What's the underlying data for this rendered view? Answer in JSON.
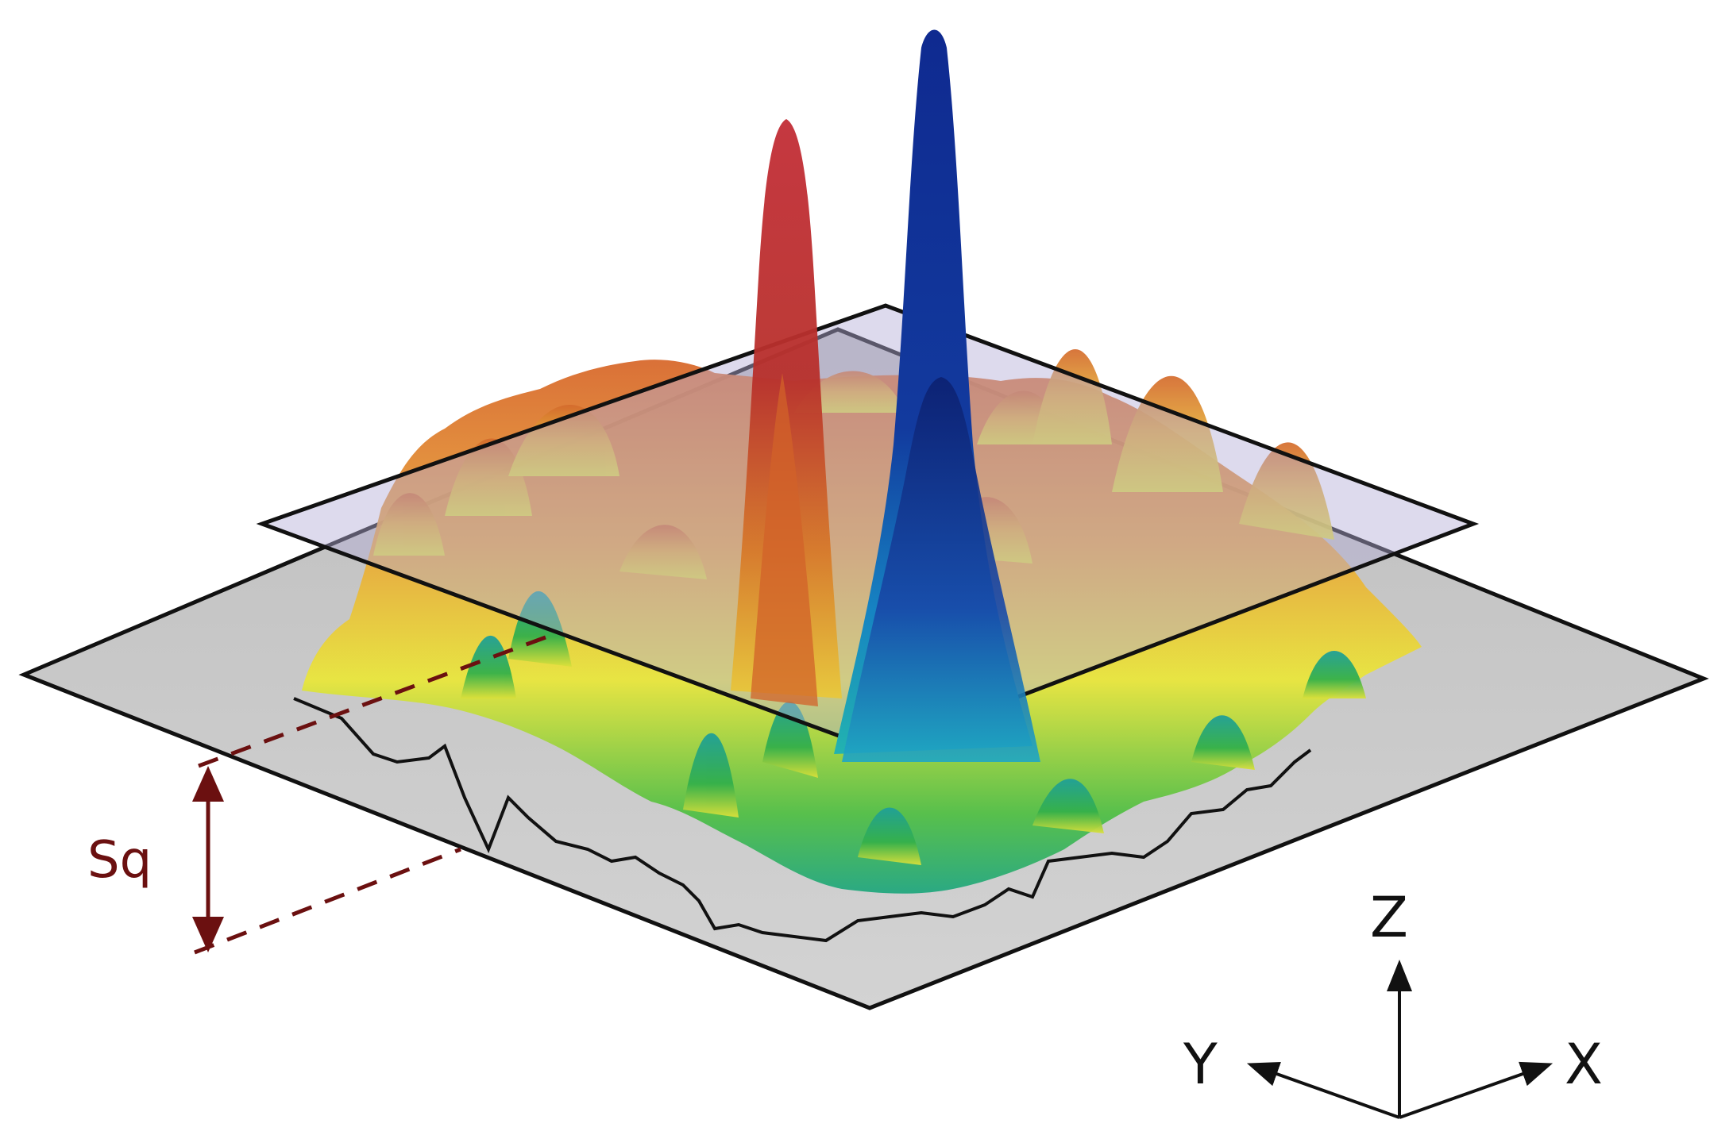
{
  "figure": {
    "measure_label": "Sq",
    "axes": {
      "z": "Z",
      "y": "Y",
      "x": "X"
    }
  },
  "colors": {
    "base_plane": "#c9c9c9",
    "mean_plane": "#b3aed6",
    "outline": "#111111",
    "measure": "#6b1010",
    "peak_red": "#b8232d",
    "peak_blue": "#0f2a8c",
    "surface_yellow": "#e9e83a",
    "surface_orange": "#e3902f",
    "surface_green": "#36b24a",
    "surface_cyan": "#1fa7a8"
  }
}
